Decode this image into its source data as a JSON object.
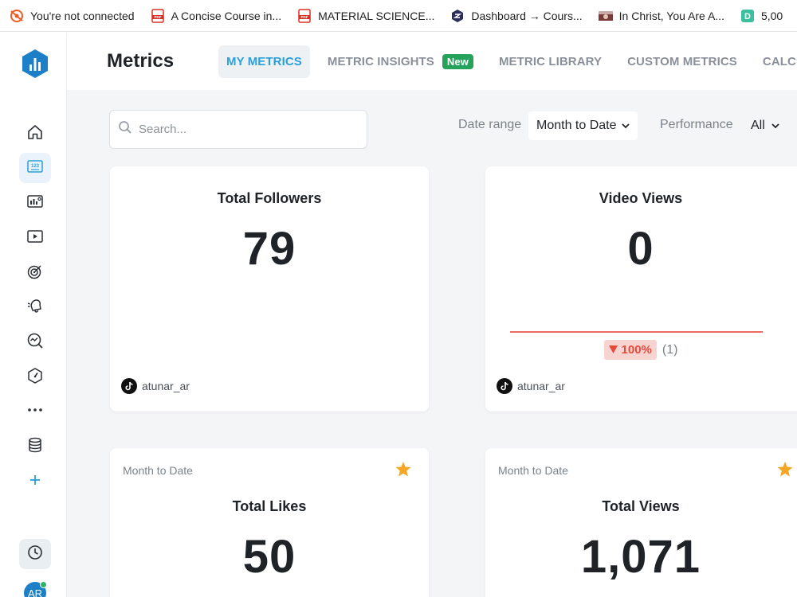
{
  "bookmarks": [
    {
      "icon": "brave-lion-icon",
      "label": "You're not connected"
    },
    {
      "icon": "pdf-icon",
      "label": "A Concise Course in..."
    },
    {
      "icon": "pdf-icon",
      "label": "MATERIAL SCIENCE..."
    },
    {
      "icon": "dashboard-site-icon",
      "label": "Dashboard → Cours..."
    },
    {
      "icon": "thumbnail-icon",
      "label": "In Christ, You Are A..."
    },
    {
      "icon": "d-site-icon",
      "label": "5,00"
    }
  ],
  "header": {
    "title": "Metrics",
    "tabs": [
      {
        "label": "MY METRICS",
        "active": true
      },
      {
        "label": "METRIC INSIGHTS",
        "badge": "New"
      },
      {
        "label": "METRIC LIBRARY"
      },
      {
        "label": "CUSTOM METRICS"
      },
      {
        "label": "CALCUL"
      }
    ]
  },
  "filters": {
    "search_placeholder": "Search...",
    "date_range_label": "Date range",
    "date_range_value": "Month to Date",
    "performance_label": "Performance",
    "performance_value": "All"
  },
  "cards": [
    {
      "title": "Total Followers",
      "value": "79",
      "account": "atunar_ar"
    },
    {
      "title": "Video Views",
      "value": "0",
      "change": "100%",
      "change_direction": "down",
      "change_count": "(1)",
      "account": "atunar_ar"
    },
    {
      "period": "Month to Date",
      "title": "Total Likes",
      "value": "50",
      "starred": true
    },
    {
      "period": "Month to Date",
      "title": "Total Views",
      "value": "1,071",
      "starred": true
    }
  ],
  "sidebar": {
    "items": [
      "home-icon",
      "metrics-icon",
      "dashboard-icon",
      "video-icon",
      "goals-icon",
      "notifications-icon",
      "insights-icon",
      "benchmark-icon",
      "more-icon",
      "data-icon",
      "add-icon"
    ],
    "avatar_initials": "AR"
  },
  "colors": {
    "accent": "#2a9fd8",
    "logo": "#1d7fc7",
    "new_badge": "#26a35a",
    "negative": "#e5493a",
    "star": "#f5a623"
  }
}
